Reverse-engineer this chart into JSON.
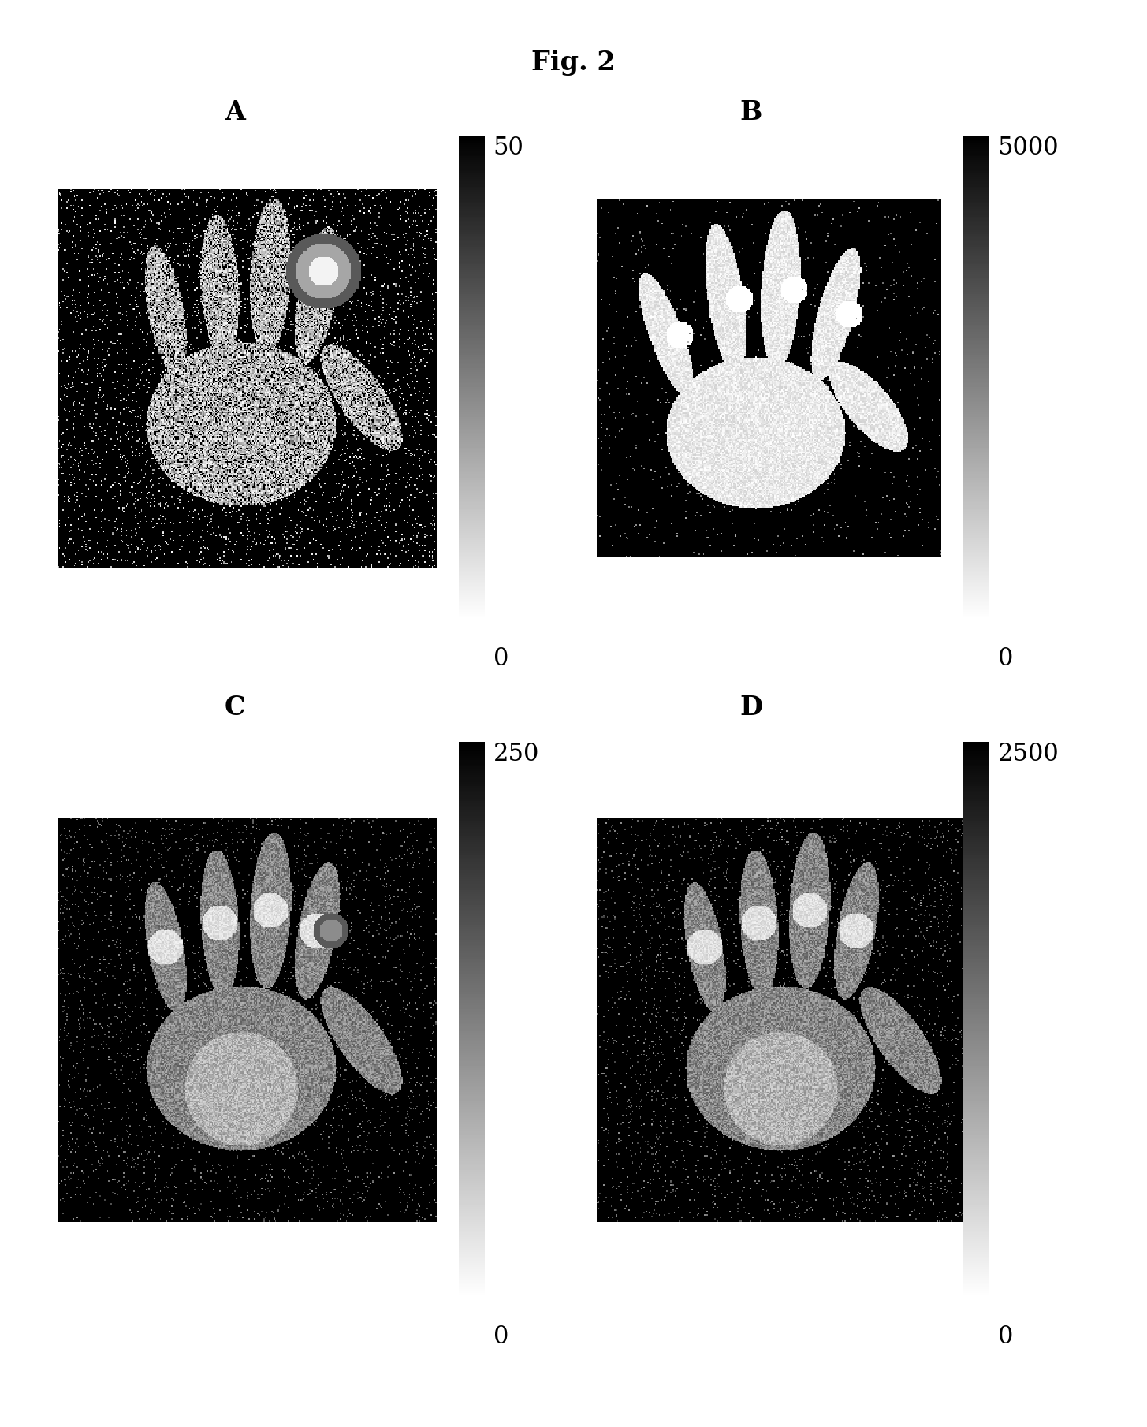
{
  "title": "Fig. 2",
  "panels": [
    "A",
    "B",
    "C",
    "D"
  ],
  "colorbar_maxvals": [
    "50",
    "5000",
    "250",
    "2500"
  ],
  "colorbar_minvals": [
    "0",
    "0",
    "0",
    "0"
  ],
  "bg_color": "#ffffff",
  "title_fontsize": 24,
  "panel_label_fontsize": 24,
  "colorbar_label_fontsize": 22
}
